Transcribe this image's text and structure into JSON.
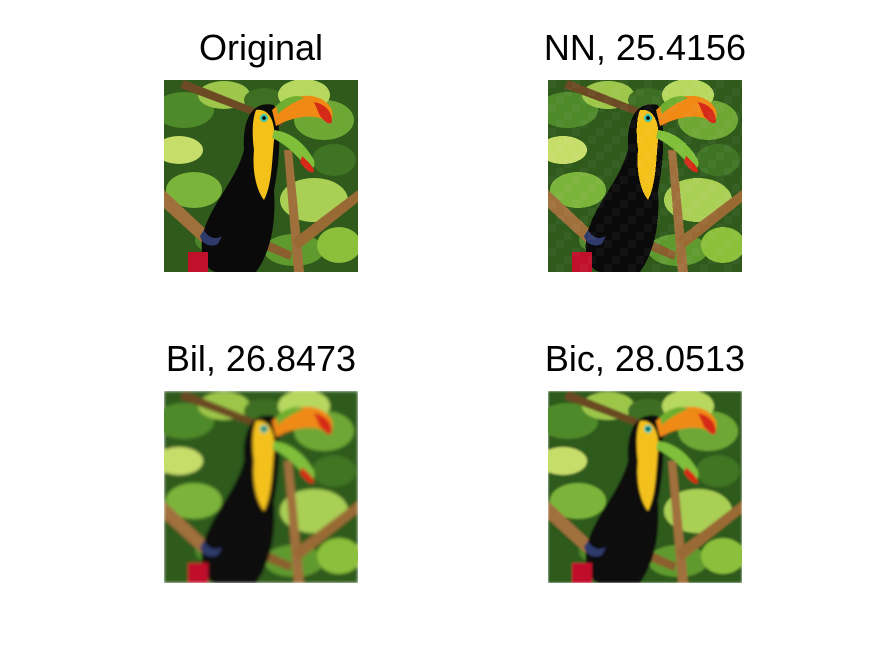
{
  "panels": [
    {
      "title": "Original",
      "style": "sharp"
    },
    {
      "title": "NN, 25.4156",
      "style": "pixelated"
    },
    {
      "title": "Bil, 26.8473",
      "style": "blurred"
    },
    {
      "title": "Bic, 28.0513",
      "style": "soft"
    }
  ],
  "image_subject": "toucan-on-branch",
  "colors": {
    "background": "#ffffff",
    "foliage_dark": "#2f5a1c",
    "foliage_light": "#8cbf3a",
    "bird_body": "#0b0a0a",
    "throat_yellow": "#f4c11a",
    "beak_orange": "#f08a14",
    "beak_red": "#d62a18",
    "beak_green": "#6fae2e",
    "branch": "#a0703c"
  }
}
